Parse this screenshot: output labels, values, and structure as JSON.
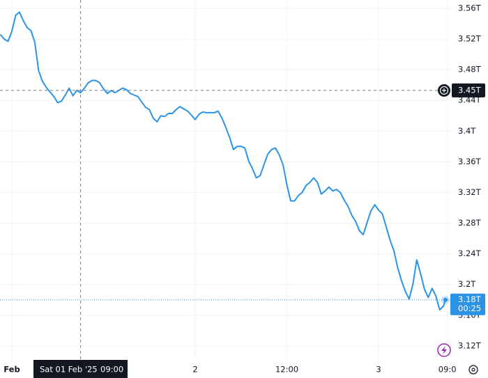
{
  "chart_data": {
    "type": "line",
    "x": [
      -1.5,
      -1,
      -0.5,
      0,
      0.5,
      1,
      1.5,
      2,
      2.5,
      3,
      3.5,
      4,
      4.5,
      5,
      5.5,
      6,
      6.5,
      7,
      7.5,
      8,
      8.5,
      9,
      9.5,
      10,
      10.5,
      11,
      11.5,
      12,
      12.5,
      13,
      13.5,
      14,
      14.5,
      15,
      15.5,
      16,
      16.5,
      17,
      17.5,
      18,
      18.5,
      19,
      19.5,
      20,
      20.5,
      21,
      21.5,
      22,
      22.5,
      23,
      23.5,
      24,
      24.5,
      25,
      25.5,
      26,
      26.5,
      27,
      27.5,
      28,
      28.5,
      29,
      29.5,
      30,
      30.5,
      31,
      31.5,
      32,
      32.5,
      33,
      33.5,
      34,
      34.5,
      35,
      35.5,
      36,
      36.5,
      37,
      37.5,
      38,
      38.5,
      39,
      39.5,
      40,
      40.5,
      41,
      41.5,
      42,
      42.5,
      43,
      43.5,
      44,
      44.5,
      45,
      45.5,
      46,
      46.5,
      47,
      47.5,
      48,
      48.5,
      49,
      49.5,
      50,
      50.5,
      51,
      51.5,
      52,
      52.5,
      53,
      53.5,
      54,
      54.5,
      55,
      55.5,
      56,
      56.5,
      56.75
    ],
    "series": [
      {
        "color": "#2a93e6",
        "values": [
          3.526,
          3.52,
          3.517,
          3.53,
          3.551,
          3.555,
          3.544,
          3.535,
          3.531,
          3.516,
          3.479,
          3.465,
          3.457,
          3.451,
          3.445,
          3.437,
          3.439,
          3.447,
          3.456,
          3.446,
          3.453,
          3.45,
          3.456,
          3.463,
          3.466,
          3.466,
          3.463,
          3.455,
          3.449,
          3.453,
          3.45,
          3.453,
          3.456,
          3.454,
          3.449,
          3.447,
          3.445,
          3.438,
          3.431,
          3.428,
          3.417,
          3.412,
          3.42,
          3.419,
          3.423,
          3.423,
          3.428,
          3.432,
          3.429,
          3.426,
          3.421,
          3.415,
          3.422,
          3.425,
          3.424,
          3.424,
          3.424,
          3.426,
          3.417,
          3.405,
          3.392,
          3.376,
          3.38,
          3.38,
          3.378,
          3.361,
          3.351,
          3.339,
          3.342,
          3.356,
          3.37,
          3.376,
          3.378,
          3.369,
          3.356,
          3.33,
          3.309,
          3.309,
          3.316,
          3.32,
          3.329,
          3.333,
          3.339,
          3.333,
          3.318,
          3.322,
          3.327,
          3.322,
          3.324,
          3.32,
          3.31,
          3.302,
          3.29,
          3.282,
          3.27,
          3.265,
          3.281,
          3.296,
          3.304,
          3.297,
          3.292,
          3.275,
          3.258,
          3.244,
          3.222,
          3.205,
          3.191,
          3.181,
          3.201,
          3.232,
          3.214,
          3.194,
          3.183,
          3.195,
          3.185,
          3.167,
          3.172,
          3.18
        ]
      }
    ],
    "xlim": [
      -1.55,
      57.76
    ],
    "xticks": [
      {
        "value": 0,
        "label": "Feb"
      },
      {
        "value": 24,
        "label": "2"
      },
      {
        "value": 36,
        "label": "12:00"
      },
      {
        "value": 48,
        "label": "3"
      },
      {
        "value": 57,
        "label": "09:0"
      }
    ],
    "ylim": [
      3.1017,
      3.5709
    ],
    "yticks": [
      {
        "value": 3.56,
        "label": "3.56T"
      },
      {
        "value": 3.52,
        "label": "3.52T"
      },
      {
        "value": 3.48,
        "label": "3.48T"
      },
      {
        "value": 3.44,
        "label": "3.44T"
      },
      {
        "value": 3.4,
        "label": "3.4T"
      },
      {
        "value": 3.36,
        "label": "3.36T"
      },
      {
        "value": 3.32,
        "label": "3.32T"
      },
      {
        "value": 3.28,
        "label": "3.28T"
      },
      {
        "value": 3.24,
        "label": "3.24T"
      },
      {
        "value": 3.2,
        "label": "3.2T"
      },
      {
        "value": 3.16,
        "label": "3.16T"
      },
      {
        "value": 3.12,
        "label": "3.12T"
      }
    ],
    "grid": true,
    "crosshair": {
      "x": 9,
      "date_label": "Sat 01 Feb '25",
      "time_label": "09:00",
      "y": 3.453,
      "y_label": "3.45T"
    },
    "last_price": {
      "value": 3.18,
      "label": "3.18T",
      "countdown": "00:25"
    }
  }
}
